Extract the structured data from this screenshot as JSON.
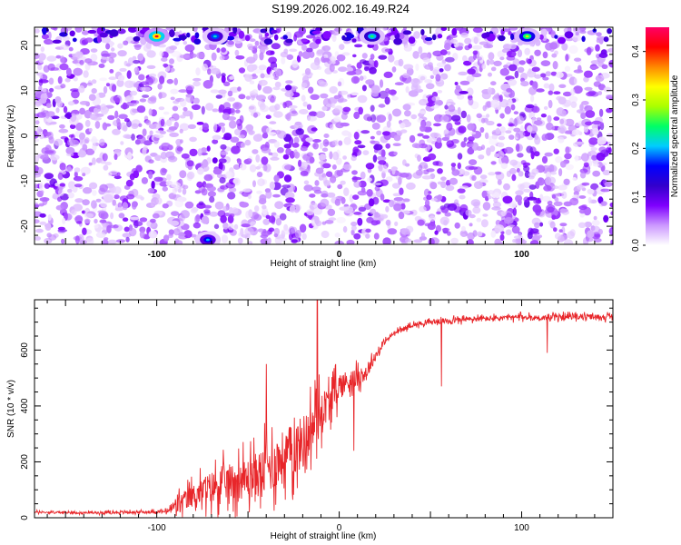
{
  "title": "S199.2026.002.16.49.R24",
  "chart_data": [
    {
      "type": "heatmap",
      "xlabel": "Height of straight line (km)",
      "ylabel": "Frequency (Hz)",
      "xlim": [
        -167,
        150
      ],
      "ylim": [
        -24,
        24
      ],
      "xticks": [
        -100,
        0,
        100
      ],
      "yticks": [
        -20,
        -10,
        0,
        10,
        20
      ],
      "colorbar": {
        "label": "Normalized spectral amplitude",
        "range": [
          0,
          0.45
        ],
        "ticks": [
          0.0,
          0.1,
          0.2,
          0.3,
          0.4
        ],
        "colors": [
          "#ffffff",
          "#cc99ff",
          "#7f00ff",
          "#3300cc",
          "#0000ff",
          "#00ccff",
          "#00ff66",
          "#aaff00",
          "#ffff00",
          "#ff8800",
          "#ff0000",
          "#ff0066"
        ]
      },
      "notes": "Speckled spectrogram: background amplitude ~0.02-0.10 everywhere; hotspots near 22 Hz at x = -100, -68, 18, 103 and near -23 Hz at x = -72",
      "hotspots": [
        {
          "x": -100,
          "y": 22,
          "value": 0.42
        },
        {
          "x": -68,
          "y": 22,
          "value": 0.22
        },
        {
          "x": 18,
          "y": 22,
          "value": 0.25
        },
        {
          "x": 103,
          "y": 22,
          "value": 0.3
        },
        {
          "x": -72,
          "y": -23,
          "value": 0.2
        }
      ]
    },
    {
      "type": "line",
      "xlabel": "Height of straight line (km)",
      "ylabel": "SNR (10 * v/v)",
      "xlim": [
        -167,
        150
      ],
      "ylim": [
        0,
        780
      ],
      "xticks": [
        -100,
        0,
        100
      ],
      "yticks": [
        0,
        200,
        400,
        600
      ],
      "series": [
        {
          "color": "#e8262a",
          "x": [
            -167,
            -140,
            -110,
            -95,
            -90,
            -80,
            -70,
            -60,
            -50,
            -40,
            -30,
            -20,
            -12,
            -10,
            -5,
            0,
            5,
            10,
            15,
            20,
            25,
            30,
            40,
            50,
            60,
            70,
            80,
            90,
            100,
            110,
            120,
            130,
            140,
            150
          ],
          "y": [
            20,
            18,
            20,
            22,
            40,
            80,
            110,
            130,
            140,
            170,
            220,
            270,
            350,
            380,
            420,
            470,
            490,
            500,
            520,
            580,
            630,
            660,
            690,
            700,
            705,
            710,
            712,
            715,
            718,
            715,
            718,
            720,
            718,
            720
          ],
          "noise": [
            5,
            5,
            6,
            8,
            40,
            50,
            70,
            80,
            90,
            110,
            120,
            120,
            110,
            90,
            70,
            60,
            50,
            40,
            30,
            20,
            12,
            10,
            10,
            10,
            12,
            12,
            12,
            12,
            12,
            12,
            12,
            12,
            12,
            12
          ],
          "spikes": [
            {
              "x": -12,
              "y": 780
            },
            {
              "x": -40,
              "y": 550
            },
            {
              "x": 8,
              "y": 240
            },
            {
              "x": 56,
              "y": 470
            },
            {
              "x": 114,
              "y": 590
            }
          ]
        }
      ]
    }
  ]
}
